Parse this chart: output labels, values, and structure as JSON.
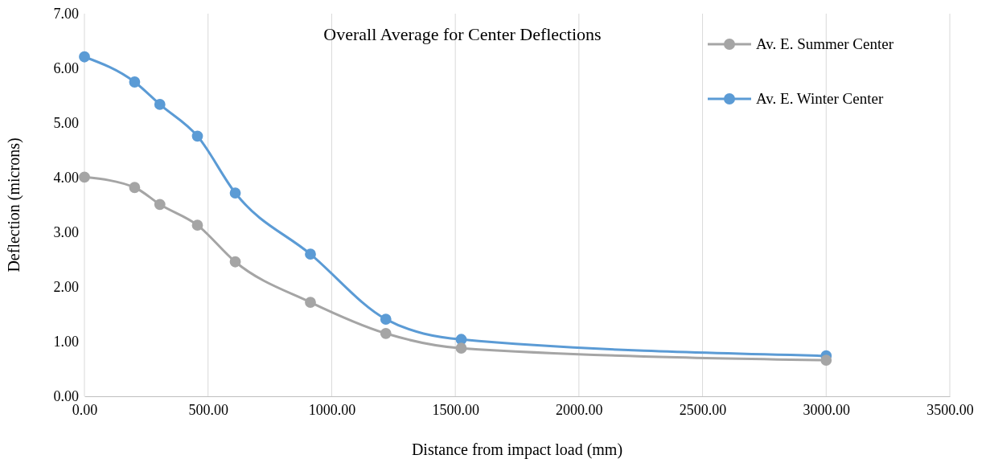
{
  "chart_data": {
    "type": "line",
    "title": "Overall Average for Center Deflections",
    "xlabel": "Distance  from impact load (mm)",
    "ylabel": "Deflection (microns)",
    "x": [
      0,
      203,
      305,
      457,
      610,
      914,
      1219,
      1524,
      3000
    ],
    "series": [
      {
        "name": "Av. E. Summer Center",
        "color": "#a5a5a5",
        "values": [
          4.01,
          3.82,
          3.51,
          3.13,
          2.46,
          1.72,
          1.15,
          0.88,
          0.66
        ]
      },
      {
        "name": "Av. E. Winter Center",
        "color": "#5b9bd5",
        "values": [
          6.21,
          5.75,
          5.34,
          4.76,
          3.72,
          2.6,
          1.41,
          1.04,
          0.74
        ]
      }
    ],
    "xlim": [
      0,
      3500
    ],
    "xticks": [
      {
        "value": 0,
        "label": "0.00"
      },
      {
        "value": 500,
        "label": "500.00"
      },
      {
        "value": 1000,
        "label": "1000.00"
      },
      {
        "value": 1500,
        "label": "1500.00"
      },
      {
        "value": 2000,
        "label": "2000.00"
      },
      {
        "value": 2500,
        "label": "2500.00"
      },
      {
        "value": 3000,
        "label": "3000.00"
      },
      {
        "value": 3500,
        "label": "3500.00"
      }
    ],
    "ylim": [
      0,
      7
    ],
    "yticks": [
      {
        "value": 0,
        "label": "0.00"
      },
      {
        "value": 1,
        "label": "1.00"
      },
      {
        "value": 2,
        "label": "2.00"
      },
      {
        "value": 3,
        "label": "3.00"
      },
      {
        "value": 4,
        "label": "4.00"
      },
      {
        "value": 5,
        "label": "5.00"
      },
      {
        "value": 6,
        "label": "6.00"
      },
      {
        "value": 7,
        "label": "7.00"
      }
    ],
    "grid": "x",
    "legend": "top right",
    "marker": "circle",
    "line_style": "solid"
  }
}
